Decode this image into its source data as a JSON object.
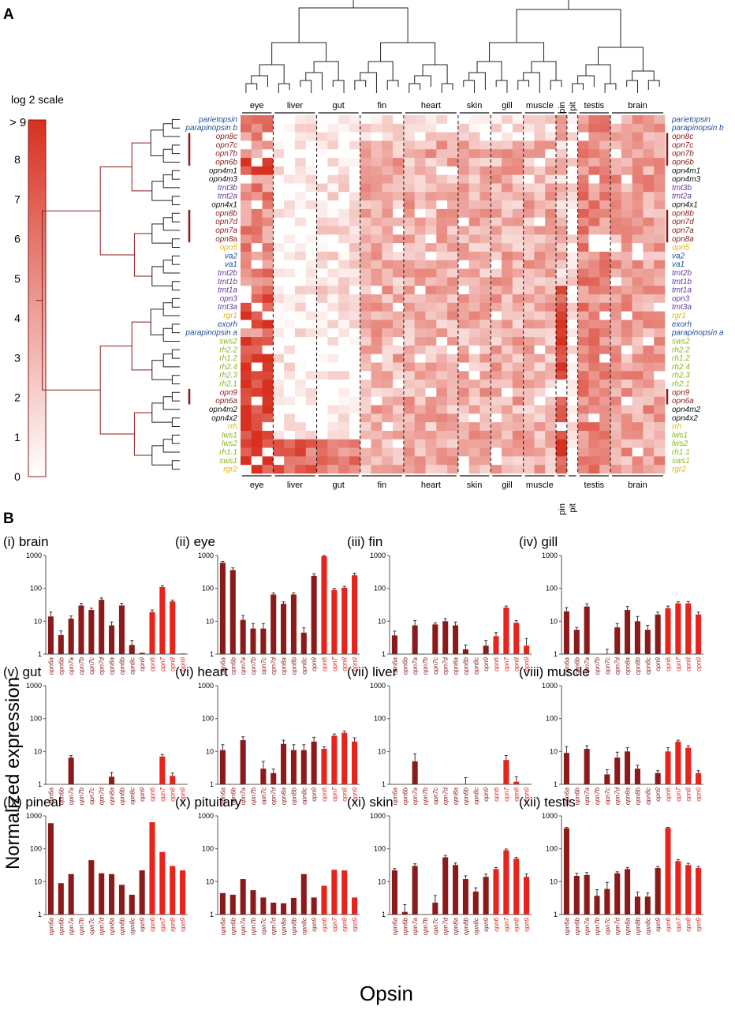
{
  "panel_a": {
    "label": "A",
    "scale": {
      "title": "log 2 scale",
      "max_label": "> 9",
      "ticks": [
        "0",
        "1",
        "2",
        "3",
        "4",
        "5",
        "6",
        "7",
        "8"
      ],
      "tick_values": [
        0,
        1,
        2,
        3,
        4,
        5,
        6,
        7,
        8
      ],
      "max": 9,
      "color_low": "#ffffff",
      "color_high": "#d7301f"
    },
    "tissues": [
      {
        "label": "eye",
        "n": 3
      },
      {
        "label": "liver",
        "n": 4
      },
      {
        "label": "gut",
        "n": 4
      },
      {
        "label": "fin",
        "n": 4
      },
      {
        "label": "heart",
        "n": 5
      },
      {
        "label": "skin",
        "n": 3
      },
      {
        "label": "gill",
        "n": 3
      },
      {
        "label": "muscle",
        "n": 3
      },
      {
        "label": "pin",
        "n": 1
      },
      {
        "label": "pit",
        "n": 1
      },
      {
        "label": "testis",
        "n": 3
      },
      {
        "label": "brain",
        "n": 5
      }
    ],
    "genes": [
      {
        "name": "parietopsin",
        "color": "#1f4e9c",
        "pair": null
      },
      {
        "name": "parapinopsin b",
        "color": "#1f4e9c",
        "pair": null
      },
      {
        "name": "opn8c",
        "color": "#8b1a1a",
        "pair": "start"
      },
      {
        "name": "opn7c",
        "color": "#8b1a1a",
        "pair": "mid"
      },
      {
        "name": "opn7b",
        "color": "#8b1a1a",
        "pair": "mid"
      },
      {
        "name": "opn6b",
        "color": "#8b1a1a",
        "pair": "end"
      },
      {
        "name": "opn4m1",
        "color": "#111111",
        "pair": null
      },
      {
        "name": "opn4m3",
        "color": "#111111",
        "pair": null
      },
      {
        "name": "tmt3b",
        "color": "#6a3d9a",
        "pair": null
      },
      {
        "name": "tmt2a",
        "color": "#6a3d9a",
        "pair": null
      },
      {
        "name": "opn4x1",
        "color": "#111111",
        "pair": null
      },
      {
        "name": "opn8b",
        "color": "#8b1a1a",
        "pair": "start"
      },
      {
        "name": "opn7d",
        "color": "#8b1a1a",
        "pair": "mid"
      },
      {
        "name": "opn7a",
        "color": "#8b1a1a",
        "pair": "mid"
      },
      {
        "name": "opn8a",
        "color": "#8b1a1a",
        "pair": "end"
      },
      {
        "name": "opn5",
        "color": "#e8b400",
        "pair": null
      },
      {
        "name": "va2",
        "color": "#1f4e9c",
        "pair": null
      },
      {
        "name": "va1",
        "color": "#1f4e9c",
        "pair": null
      },
      {
        "name": "tmt2b",
        "color": "#6a3d9a",
        "pair": null
      },
      {
        "name": "tmt1b",
        "color": "#6a3d9a",
        "pair": null
      },
      {
        "name": "tmt1a",
        "color": "#6a3d9a",
        "pair": null
      },
      {
        "name": "opn3",
        "color": "#6a3d9a",
        "pair": null
      },
      {
        "name": "tmt3a",
        "color": "#6a3d9a",
        "pair": null
      },
      {
        "name": "rgr1",
        "color": "#e8b400",
        "pair": null
      },
      {
        "name": "exorh",
        "color": "#1f4e9c",
        "pair": null
      },
      {
        "name": "parapinopsin a",
        "color": "#1f4e9c",
        "pair": null
      },
      {
        "name": "sws2",
        "color": "#8cb81f",
        "pair": null
      },
      {
        "name": "rh2.2",
        "color": "#8cb81f",
        "pair": null
      },
      {
        "name": "rh1.2",
        "color": "#8cb81f",
        "pair": null
      },
      {
        "name": "rh2.4",
        "color": "#8cb81f",
        "pair": null
      },
      {
        "name": "rh2.3",
        "color": "#8cb81f",
        "pair": null
      },
      {
        "name": "rh2.1",
        "color": "#8cb81f",
        "pair": null
      },
      {
        "name": "opn9",
        "color": "#8b1a1a",
        "pair": "start"
      },
      {
        "name": "opn6a",
        "color": "#8b1a1a",
        "pair": "end"
      },
      {
        "name": "opn4m2",
        "color": "#111111",
        "pair": null
      },
      {
        "name": "opn4x2",
        "color": "#111111",
        "pair": null
      },
      {
        "name": "rrh",
        "color": "#e8b400",
        "pair": null
      },
      {
        "name": "lws1",
        "color": "#8cb81f",
        "pair": null
      },
      {
        "name": "lws2",
        "color": "#8cb81f",
        "pair": null
      },
      {
        "name": "rh1.1",
        "color": "#8cb81f",
        "pair": null
      },
      {
        "name": "sws1",
        "color": "#8cb81f",
        "pair": null
      },
      {
        "name": "rgr2",
        "color": "#e8b400",
        "pair": null
      }
    ]
  },
  "panel_b": {
    "label": "B",
    "y_axis_label": "Normalized expression",
    "x_axis_label": "Opsin",
    "y_ticks": [
      "1",
      "10",
      "100",
      "1000"
    ],
    "categories": [
      "opn6a",
      "opn6b",
      "opn7a",
      "opn7b",
      "opn7c",
      "opn7d",
      "opn8a",
      "opn8b",
      "opn8c",
      "opn9",
      "opn6",
      "opn7",
      "opn8",
      "opn9"
    ],
    "dark_color": "#8b1a1a",
    "light_color": "#e8231c"
  },
  "chart_data": {
    "type": "bar",
    "scale": "log10",
    "ylim": [
      1,
      1000
    ],
    "xlabel": "Opsin",
    "ylabel": "Normalized expression",
    "categories": [
      "opn6a",
      "opn6b",
      "opn7a",
      "opn7b",
      "opn7c",
      "opn7d",
      "opn8a",
      "opn8b",
      "opn8c",
      "opn9",
      "opn6",
      "opn7",
      "opn8",
      "opn9"
    ],
    "groups": [
      "paralog",
      "paralog",
      "paralog",
      "paralog",
      "paralog",
      "paralog",
      "paralog",
      "paralog",
      "paralog",
      "paralog",
      "ortholog",
      "ortholog",
      "ortholog",
      "ortholog"
    ],
    "panels": [
      {
        "title": "(i) brain",
        "values": [
          14,
          3.8,
          12,
          30,
          22,
          45,
          7.5,
          30,
          1.9,
          1.1,
          19,
          110,
          40,
          1.05
        ],
        "errors": [
          5,
          1.3,
          2.5,
          5,
          3,
          6,
          2,
          5,
          0.7,
          0,
          3,
          10,
          4,
          0
        ]
      },
      {
        "title": "(ii) eye",
        "values": [
          600,
          360,
          11,
          6,
          6,
          65,
          34,
          65,
          4.5,
          240,
          950,
          90,
          105,
          250
        ],
        "errors": [
          60,
          60,
          4,
          2.5,
          2.5,
          8,
          5,
          8,
          1.8,
          40,
          50,
          10,
          10,
          40
        ]
      },
      {
        "title": "(iii) fin",
        "values": [
          3.7,
          1,
          7.5,
          1,
          8,
          10,
          7.5,
          1.4,
          1,
          1.8,
          3.5,
          26,
          9,
          1.8
        ],
        "errors": [
          1.3,
          0,
          3,
          0,
          1,
          2,
          2,
          0.5,
          0,
          0.8,
          1,
          3,
          1.5,
          1.2
        ]
      },
      {
        "title": "(iv) gill",
        "values": [
          20,
          5.5,
          28,
          1,
          1,
          6.5,
          22,
          10,
          5.5,
          16,
          25,
          35,
          35,
          16
        ],
        "errors": [
          6,
          1,
          6,
          0,
          0.4,
          2,
          6,
          4,
          2,
          3,
          4,
          4,
          5,
          3
        ]
      },
      {
        "title": "(v) gut",
        "values": [
          1,
          1,
          6.5,
          1,
          1,
          1,
          1.7,
          1,
          1,
          1,
          1,
          7,
          1.8,
          1
        ],
        "errors": [
          0,
          0,
          1,
          0,
          0,
          0,
          0.6,
          0,
          0,
          0,
          0,
          1,
          0.4,
          0
        ]
      },
      {
        "title": "(vi) heart",
        "values": [
          11,
          1,
          22,
          1,
          3,
          2.2,
          17,
          11,
          11,
          20,
          12,
          30,
          37,
          20
        ],
        "errors": [
          5,
          0,
          6,
          0,
          2,
          0.7,
          5,
          5,
          5,
          7,
          2,
          4,
          5,
          6
        ]
      },
      {
        "title": "(vii) liver",
        "values": [
          1,
          1,
          5,
          1,
          1,
          1,
          1,
          1,
          1,
          1,
          1,
          5.5,
          1.2,
          1
        ],
        "errors": [
          0,
          0,
          3.5,
          0,
          0,
          0,
          0,
          0.6,
          0,
          0,
          0,
          2,
          0.5,
          0
        ]
      },
      {
        "title": "(viii) muscle",
        "values": [
          9,
          1,
          12,
          1,
          2,
          6.5,
          10,
          3,
          1,
          2.2,
          10,
          20,
          13,
          2.2
        ],
        "errors": [
          5,
          0,
          3,
          0,
          0.8,
          3,
          3,
          0.8,
          0,
          0.4,
          3,
          2,
          2,
          0.4
        ]
      },
      {
        "title": "(ix) pineal",
        "values": [
          600,
          9,
          17,
          1,
          45,
          18,
          17,
          8,
          4,
          22,
          640,
          80,
          30,
          22
        ],
        "errors": [
          0,
          0,
          0,
          0,
          0,
          0,
          0,
          0,
          0,
          0,
          0,
          0,
          0,
          0
        ]
      },
      {
        "title": "(x) pituitary",
        "values": [
          4.5,
          4,
          12,
          5.5,
          3.3,
          2.3,
          2.2,
          3.2,
          17,
          3.3,
          7.5,
          23,
          22,
          3.3
        ],
        "errors": [
          0,
          0,
          0,
          0,
          0,
          0,
          0,
          0,
          0,
          0,
          0,
          0,
          0,
          0
        ]
      },
      {
        "title": "(xi) skin",
        "values": [
          22,
          1.2,
          30,
          1,
          2.3,
          55,
          32,
          12,
          5,
          14,
          24,
          90,
          50,
          14
        ],
        "errors": [
          3,
          0.8,
          5,
          0,
          1.5,
          8,
          5,
          3,
          1.5,
          3,
          3,
          8,
          5,
          3
        ]
      },
      {
        "title": "(xii) testis",
        "values": [
          420,
          15,
          16,
          3.7,
          6,
          18,
          24,
          3.5,
          3.5,
          26,
          430,
          42,
          32,
          26
        ],
        "errors": [
          30,
          3,
          3,
          2,
          3.5,
          2,
          3,
          1.3,
          1,
          3,
          20,
          5,
          4,
          3
        ]
      }
    ]
  }
}
